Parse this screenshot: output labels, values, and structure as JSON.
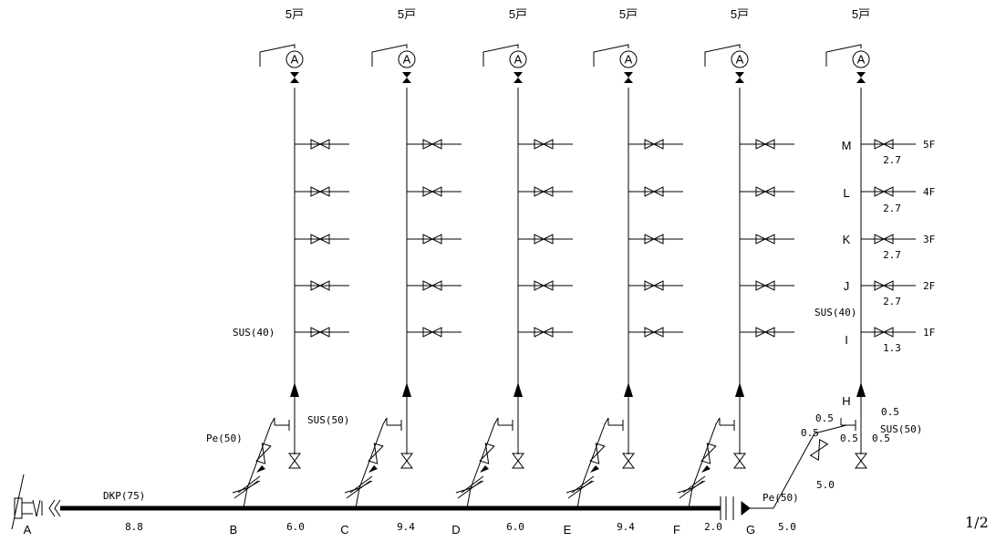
{
  "risers": [
    {
      "households": "5戸"
    },
    {
      "households": "5戸"
    },
    {
      "households": "5戸"
    },
    {
      "households": "5戸"
    },
    {
      "households": "5戸"
    },
    {
      "households": "5戸"
    }
  ],
  "meter_symbol": "A",
  "main_pipe": {
    "spec": "DKP(75)",
    "nodes": [
      "A",
      "B",
      "C",
      "D",
      "E",
      "F",
      "G"
    ],
    "lengths": [
      "8.8",
      "6.0",
      "9.4",
      "6.0",
      "9.4",
      "2.0"
    ]
  },
  "branch_pipe": {
    "spec": "Pe(50)",
    "spec_right": "Pe(50)",
    "lengths_right": [
      "5.0",
      "5.0"
    ]
  },
  "riser_pipe": {
    "spec": "SUS(40)",
    "spec_right": "SUS(40)",
    "base_spec": "SUS(50)",
    "base_spec_right": "SUS(50)"
  },
  "right_riser": {
    "nodes": [
      "M",
      "L",
      "K",
      "J",
      "I",
      "H"
    ],
    "floors": [
      "5F",
      "4F",
      "3F",
      "2F",
      "1F"
    ],
    "segment_lengths": [
      "2.7",
      "2.7",
      "2.7",
      "2.7",
      "1.3"
    ],
    "base_lengths": [
      "0.5",
      "0.5",
      "0.5",
      "0.5",
      "0.5"
    ]
  },
  "page_number": "1/2"
}
